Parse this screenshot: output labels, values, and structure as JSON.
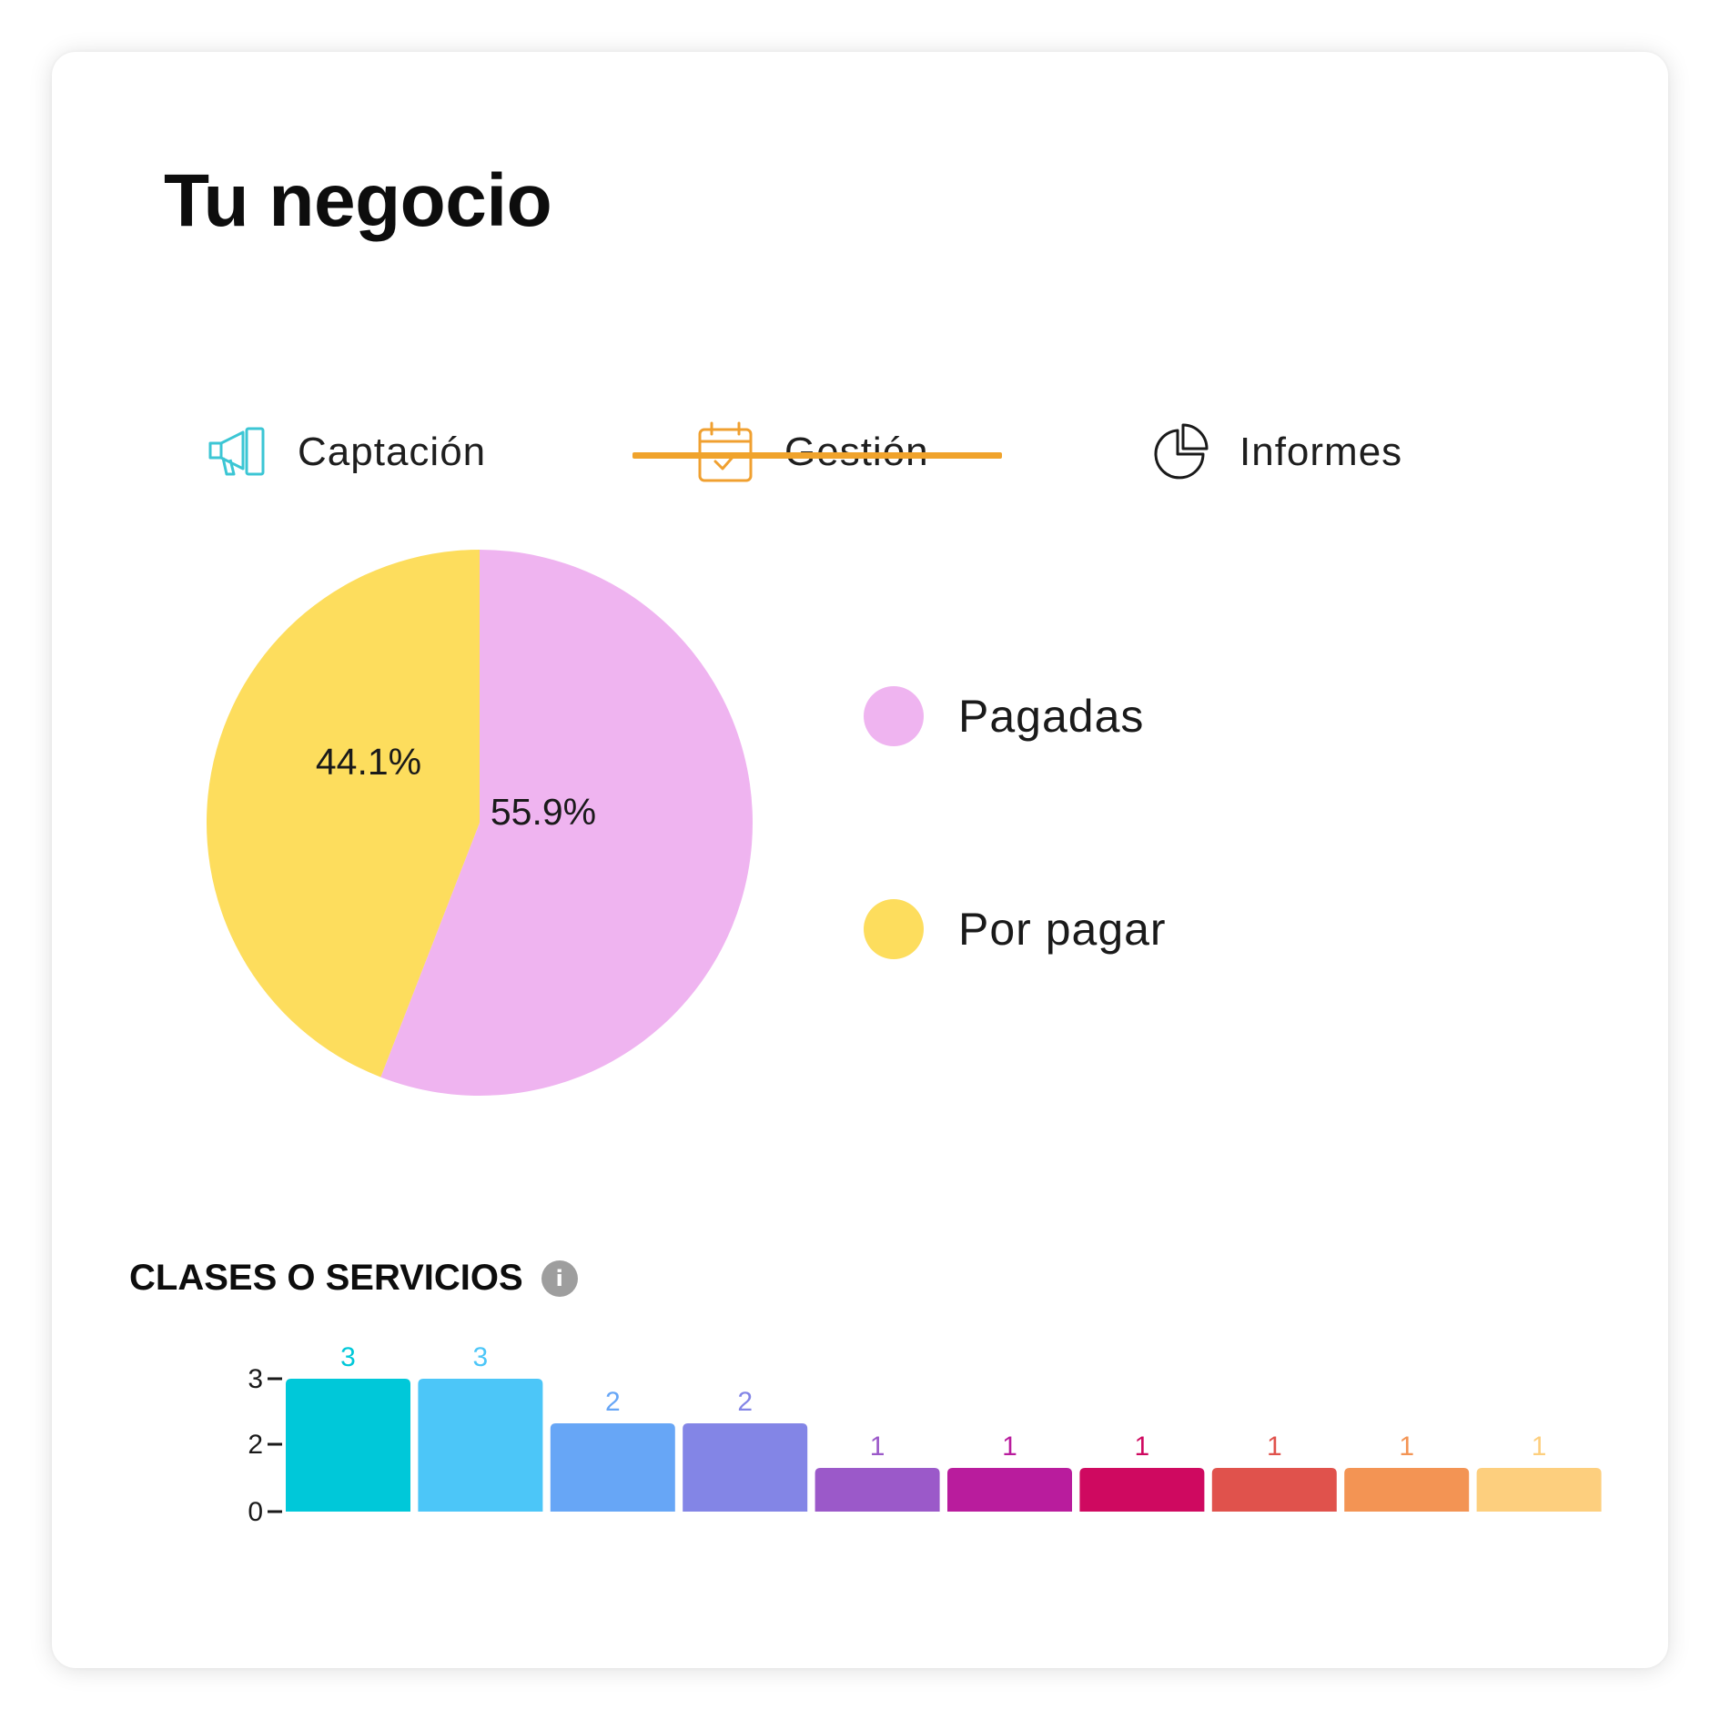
{
  "header": {
    "title": "Tu negocio"
  },
  "tabs": [
    {
      "label": "Captación",
      "icon": "megaphone-icon",
      "color": "#3cc6d4",
      "active": false
    },
    {
      "label": "Gestión",
      "icon": "calendar-check-icon",
      "color": "#f0a030",
      "active": true
    },
    {
      "label": "Informes",
      "icon": "pie-chart-icon",
      "color": "#1a1a1a",
      "active": false
    }
  ],
  "colors": {
    "active_tab_underline": "#f0a32c"
  },
  "chart_data": [
    {
      "type": "pie",
      "slices": [
        {
          "name": "Pagadas",
          "value": 55.9,
          "label": "55.9%",
          "color": "#efb4f0"
        },
        {
          "name": "Por pagar",
          "value": 44.1,
          "label": "44.1%",
          "color": "#fddd5d"
        }
      ],
      "legend_placement": "right"
    },
    {
      "type": "bar",
      "title": "CLASES O SERVICIOS",
      "values": [
        3,
        3,
        2,
        2,
        1,
        1,
        1,
        1,
        1,
        1
      ],
      "value_labels": [
        "3",
        "3",
        "2",
        "2",
        "1",
        "1",
        "1",
        "1",
        "1",
        "1"
      ],
      "colors": [
        "#00c8d9",
        "#4cc6f8",
        "#67a6f6",
        "#8385e6",
        "#9b59c9",
        "#b91c9d",
        "#cf0960",
        "#e0524c",
        "#f39454",
        "#fdcf7e"
      ],
      "yticks": [
        0,
        2,
        3
      ],
      "ylim": [
        0,
        3
      ],
      "grid": false
    }
  ]
}
